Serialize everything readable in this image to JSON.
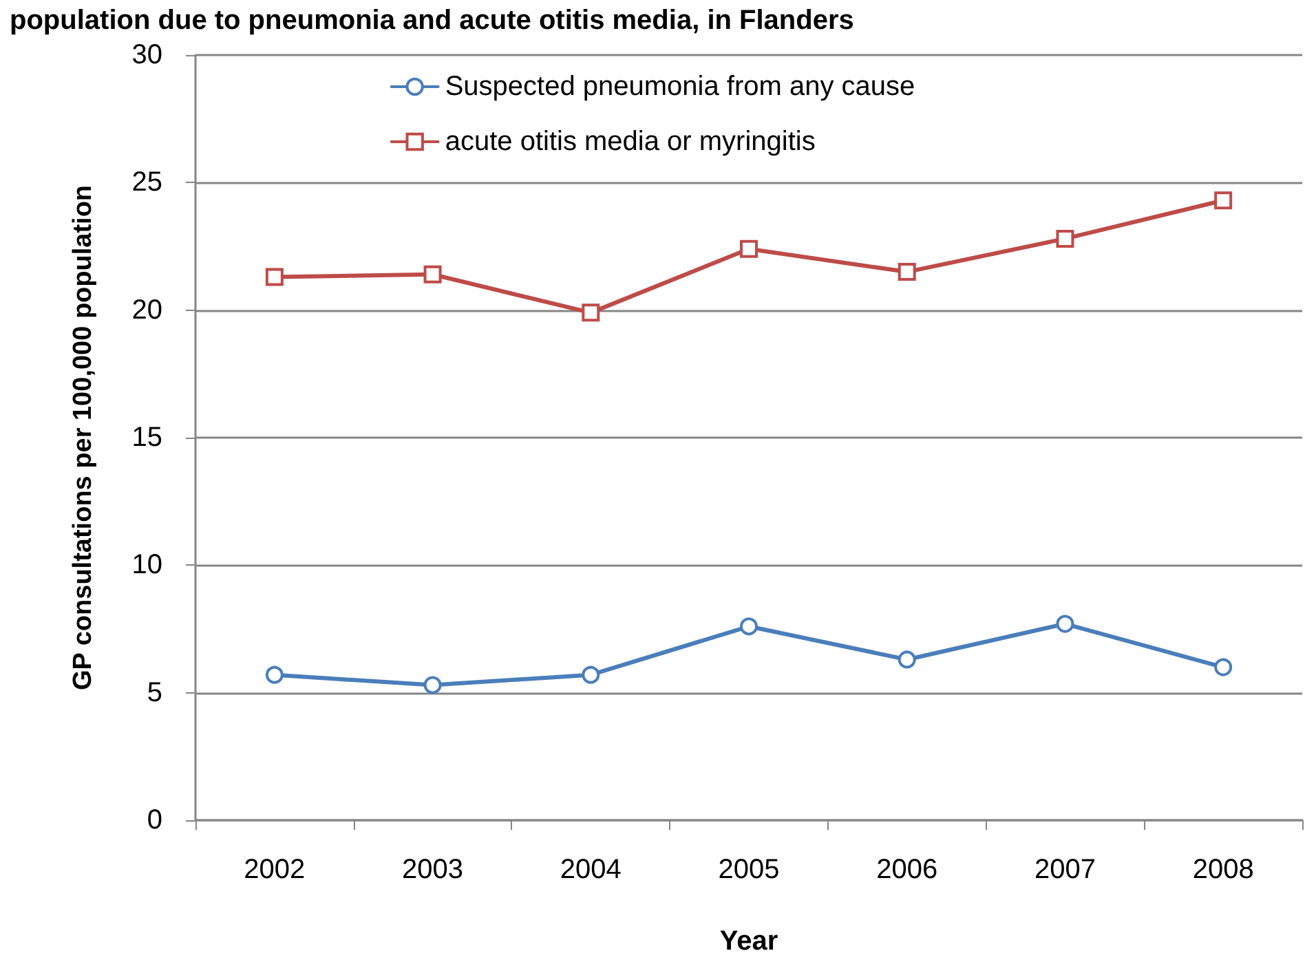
{
  "chart_data": {
    "type": "line",
    "title": "population due to pneumonia and acute otitis media, in Flanders",
    "xlabel": "Year",
    "ylabel": "GP consultations per 100,000 population",
    "categories": [
      "2002",
      "2003",
      "2004",
      "2005",
      "2006",
      "2007",
      "2008"
    ],
    "series": [
      {
        "name": "Suspected pneumonia from any cause",
        "color": "#4a7ebb",
        "marker": "circle",
        "values": [
          5.7,
          5.3,
          5.7,
          7.6,
          6.3,
          7.7,
          6.0
        ]
      },
      {
        "name": "acute otitis media or myringitis",
        "color": "#be4b48",
        "marker": "square",
        "values": [
          21.3,
          21.4,
          19.9,
          22.4,
          21.5,
          22.8,
          24.3
        ]
      }
    ],
    "ylim": [
      0,
      30
    ],
    "yticks": [
      0,
      5,
      10,
      15,
      20,
      25,
      30
    ],
    "grid": "y",
    "legend": "top",
    "line_style": "solid"
  }
}
